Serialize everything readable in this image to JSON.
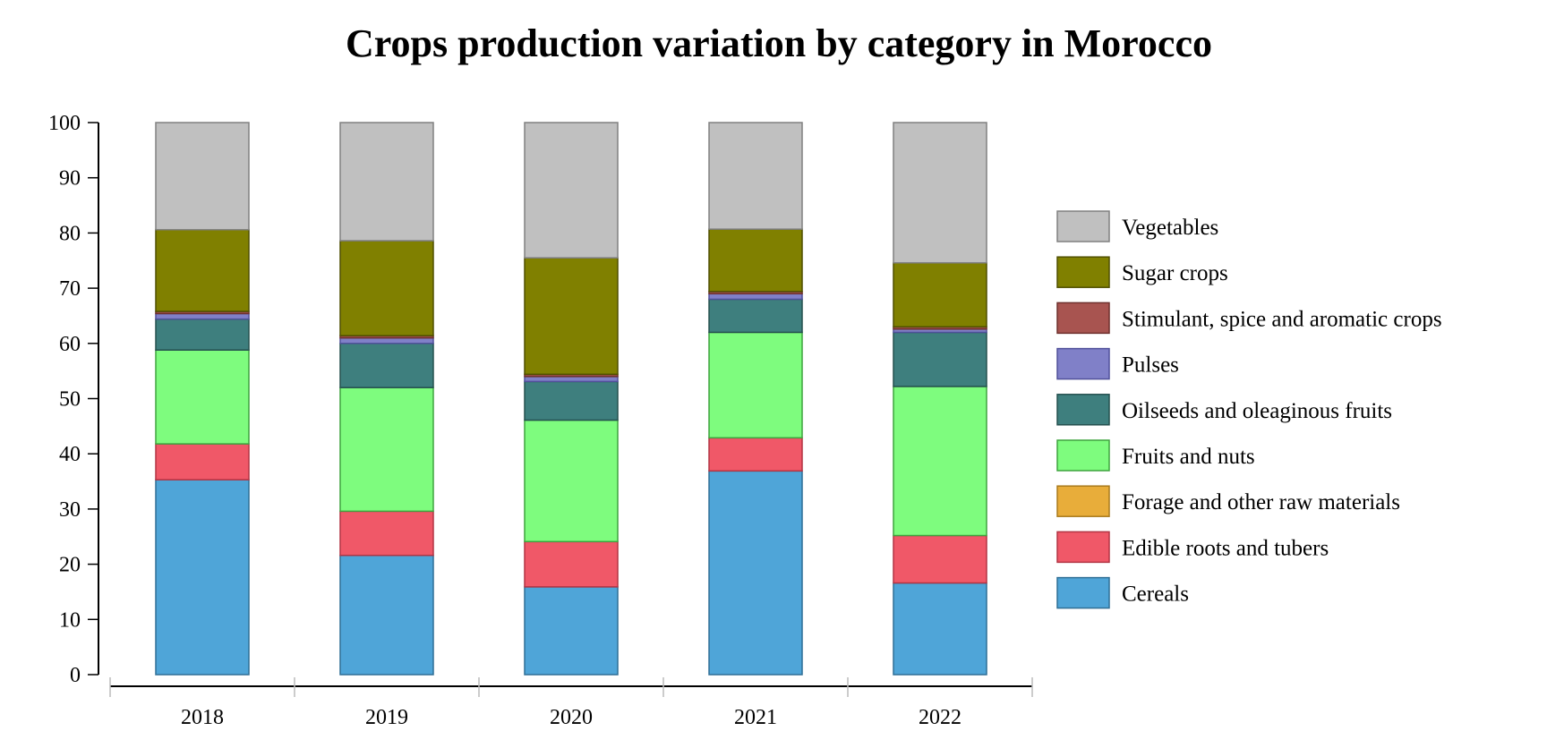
{
  "chart_data": {
    "type": "bar",
    "stacked": true,
    "title": "Crops production variation by category in Morocco",
    "xlabel": "",
    "ylabel": "",
    "ylim": [
      0,
      100
    ],
    "yticks": [
      0,
      10,
      20,
      30,
      40,
      50,
      60,
      70,
      80,
      90,
      100
    ],
    "categories": [
      "2018",
      "2019",
      "2020",
      "2021",
      "2022"
    ],
    "grid": false,
    "legend_position": "right",
    "series": [
      {
        "name": "Cereals",
        "color": "#4fa5d8",
        "stroke": "#2f6f95",
        "values": [
          35.3,
          21.6,
          15.9,
          36.9,
          16.6
        ]
      },
      {
        "name": "Edible roots and tubers",
        "color": "#f05868",
        "stroke": "#b23443",
        "values": [
          6.5,
          8.0,
          8.2,
          6.0,
          8.6
        ]
      },
      {
        "name": "Forage and other raw materials",
        "color": "#e8ad3a",
        "stroke": "#a97a1c",
        "values": [
          0.0,
          0.0,
          0.0,
          0.0,
          0.0
        ]
      },
      {
        "name": "Fruits and nuts",
        "color": "#7efc7e",
        "stroke": "#3fa33f",
        "values": [
          17.0,
          22.4,
          22.0,
          19.1,
          27.0
        ]
      },
      {
        "name": "Oilseeds and oleaginous fruits",
        "color": "#3e7f7e",
        "stroke": "#25504f",
        "values": [
          5.6,
          8.0,
          7.0,
          6.0,
          9.8
        ]
      },
      {
        "name": "Pulses",
        "color": "#8080c8",
        "stroke": "#50509a",
        "values": [
          1.0,
          1.0,
          0.9,
          1.0,
          0.6
        ]
      },
      {
        "name": "Stimulant, spice and aromatic crops",
        "color": "#a85450",
        "stroke": "#6e302d",
        "values": [
          0.4,
          0.4,
          0.4,
          0.4,
          0.4
        ]
      },
      {
        "name": "Sugar crops",
        "color": "#808000",
        "stroke": "#4f4f00",
        "values": [
          14.8,
          17.2,
          21.1,
          11.3,
          11.6
        ]
      },
      {
        "name": "Vegetables",
        "color": "#c0c0c0",
        "stroke": "#808080",
        "values": [
          19.4,
          21.4,
          24.5,
          19.3,
          25.4
        ]
      }
    ]
  }
}
